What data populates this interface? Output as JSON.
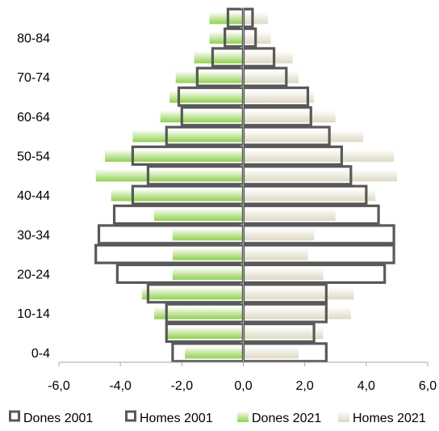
{
  "chart_data": {
    "type": "bar",
    "orientation": "horizontal",
    "subtype": "population-pyramid",
    "categories": [
      "0-4",
      "5-9",
      "10-14",
      "15-19",
      "20-24",
      "25-29",
      "30-34",
      "35-39",
      "40-44",
      "45-49",
      "50-54",
      "55-59",
      "60-64",
      "65-69",
      "70-74",
      "75-79",
      "80-84",
      "85+"
    ],
    "category_labels_shown": [
      "0-4",
      "10-14",
      "20-24",
      "30-34",
      "40-44",
      "50-54",
      "60-64",
      "70-74",
      "80-84"
    ],
    "xlim": [
      -6,
      6
    ],
    "xticks": [
      -6,
      -4,
      -2,
      0,
      2,
      4,
      6
    ],
    "xtick_labels": [
      "-6,0",
      "-4,0",
      "-2,0",
      "0,0",
      "2,0",
      "4,0",
      "6,0"
    ],
    "series": [
      {
        "name": "Dones 2001",
        "style": "outline",
        "color": "#595959",
        "values": [
          -2.3,
          -2.5,
          -2.5,
          -3.1,
          -4.1,
          -4.8,
          -4.7,
          -4.2,
          -3.6,
          -3.1,
          -3.6,
          -2.5,
          -2.0,
          -2.1,
          -1.5,
          -1.0,
          -0.6,
          -0.5
        ]
      },
      {
        "name": "Homes 2001",
        "style": "outline",
        "color": "#595959",
        "values": [
          2.7,
          2.3,
          2.7,
          2.7,
          4.6,
          4.9,
          4.9,
          4.4,
          4.0,
          3.5,
          3.2,
          2.8,
          2.2,
          2.1,
          1.4,
          1.0,
          0.4,
          0.3
        ]
      },
      {
        "name": "Dones 2021",
        "style": "gradient-fill",
        "color": "#92d050",
        "values": [
          -1.9,
          -2.5,
          -2.9,
          -3.3,
          -2.3,
          -2.3,
          -2.3,
          -2.9,
          -4.3,
          -4.8,
          -4.5,
          -3.6,
          -2.7,
          -2.4,
          -2.2,
          -1.6,
          -1.1,
          -1.1
        ]
      },
      {
        "name": "Homes 2021",
        "style": "gradient-fill",
        "color": "#ddd9c3",
        "values": [
          1.8,
          2.6,
          3.5,
          3.6,
          2.6,
          2.1,
          2.3,
          3.0,
          4.3,
          5.0,
          4.9,
          3.9,
          3.0,
          2.3,
          1.8,
          1.6,
          0.9,
          0.8
        ]
      }
    ],
    "legend_position": "bottom",
    "gridlines": false
  }
}
